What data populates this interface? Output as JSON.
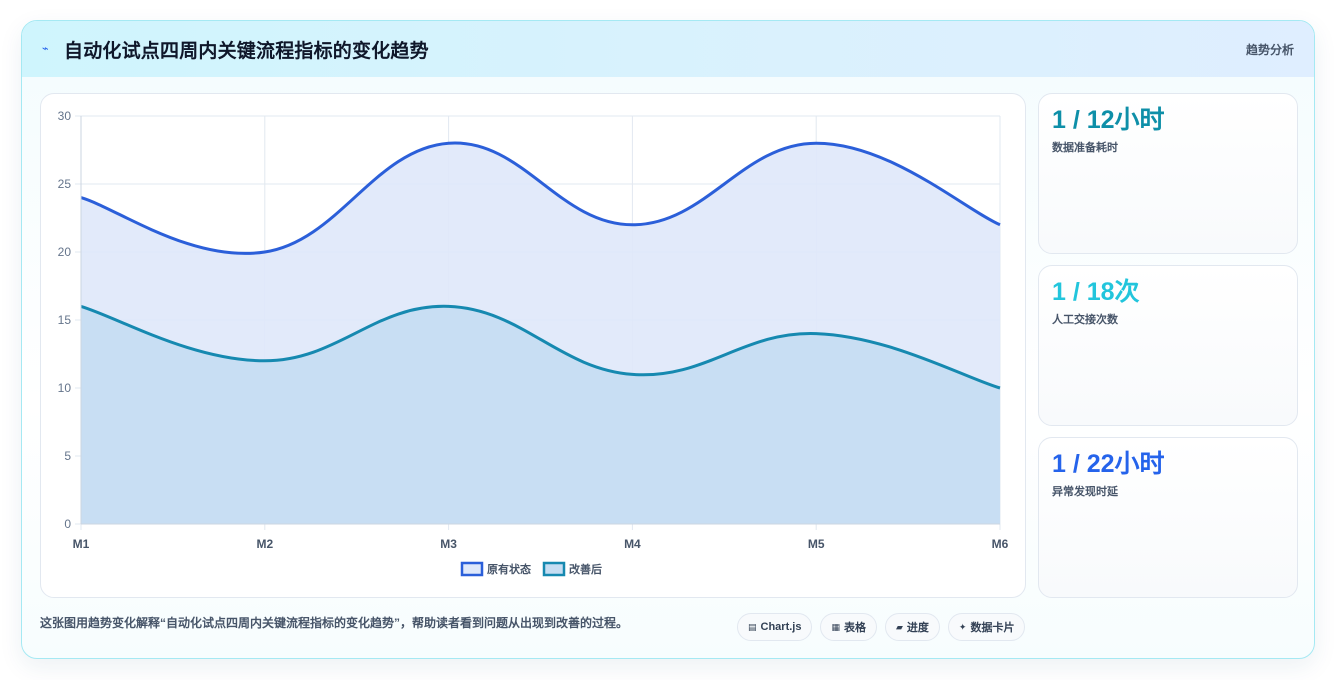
{
  "header": {
    "icon": "lightning-icon",
    "title": "自动化试点四周内关键流程指标的变化趋势",
    "tag": "趋势分析"
  },
  "chart_data": {
    "type": "area",
    "categories": [
      "M1",
      "M2",
      "M3",
      "M4",
      "M5",
      "M6"
    ],
    "series": [
      {
        "name": "原有状态",
        "values": [
          24,
          20,
          28,
          22,
          28,
          22
        ],
        "color": "#2b5fd9",
        "fill": "#dfe8fa"
      },
      {
        "name": "改善后",
        "values": [
          16,
          12,
          16,
          11,
          14,
          10
        ],
        "color": "#1689b0",
        "fill": "#c5ddf2"
      }
    ],
    "ylim": [
      0,
      30
    ],
    "yticks": [
      0,
      5,
      10,
      15,
      20,
      25,
      30
    ],
    "grid": true,
    "legend": "bottom"
  },
  "stats": [
    {
      "value": "1 / 12小时",
      "label": "数据准备耗时",
      "color": "#0e8fa8"
    },
    {
      "value": "1 / 18次",
      "label": "人工交接次数",
      "color": "#22c5dc"
    },
    {
      "value": "1 / 22小时",
      "label": "异常发现时延",
      "color": "#2563eb"
    }
  ],
  "footer": {
    "text": "这张图用趋势变化解释“自动化试点四周内关键流程指标的变化趋势”，帮助读者看到问题从出现到改善的过程。",
    "pills": [
      {
        "icon": "chart-icon",
        "label": "Chart.js"
      },
      {
        "icon": "table-icon",
        "label": "表格"
      },
      {
        "icon": "progress-icon",
        "label": "进度"
      },
      {
        "icon": "sparkle-icon",
        "label": "数据卡片"
      }
    ]
  }
}
